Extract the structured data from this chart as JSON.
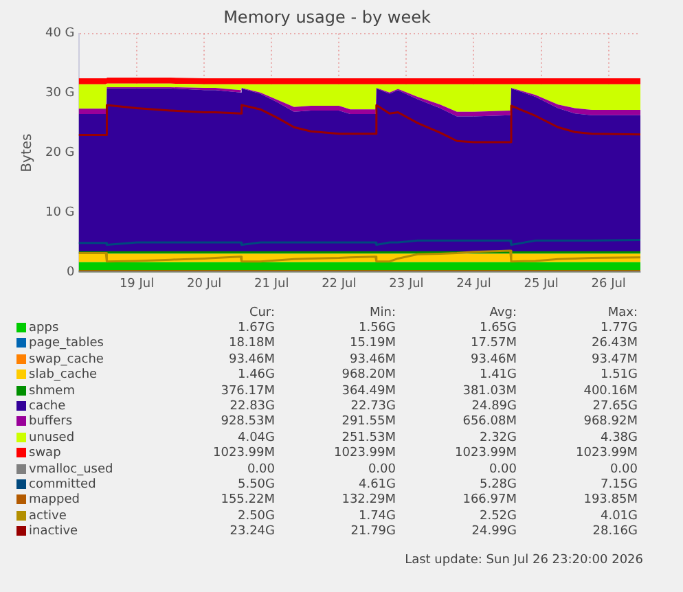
{
  "chart_data": {
    "type": "area",
    "title": "Memory usage - by week",
    "ylabel": "Bytes",
    "stacked": true,
    "legend": "bottom",
    "grid": true,
    "x": [
      "2026-07-18T15:20",
      "2026-07-19T01:00",
      "2026-07-19T01:20",
      "2026-07-19T12:00",
      "2026-07-20T00:00",
      "2026-07-20T12:00",
      "2026-07-20T16:00",
      "2026-07-21T01:00",
      "2026-07-21T01:20",
      "2026-07-21T08:00",
      "2026-07-21T14:00",
      "2026-07-21T20:00",
      "2026-07-22T02:00",
      "2026-07-22T12:00",
      "2026-07-22T16:00",
      "2026-07-23T01:00",
      "2026-07-23T01:20",
      "2026-07-23T06:00",
      "2026-07-23T09:00",
      "2026-07-23T16:00",
      "2026-07-24T00:00",
      "2026-07-24T06:00",
      "2026-07-24T12:00",
      "2026-07-25T01:00",
      "2026-07-25T01:20",
      "2026-07-25T10:00",
      "2026-07-25T18:00",
      "2026-07-26T00:00",
      "2026-07-26T06:00",
      "2026-07-26T23:20"
    ],
    "xlim": [
      "2026-07-18T15:20",
      "2026-07-26T23:20"
    ],
    "xticks": [
      {
        "value": "2026-07-19T12:00",
        "label": "19 Jul"
      },
      {
        "value": "2026-07-20T12:00",
        "label": "20 Jul"
      },
      {
        "value": "2026-07-21T12:00",
        "label": "21 Jul"
      },
      {
        "value": "2026-07-22T12:00",
        "label": "22 Jul"
      },
      {
        "value": "2026-07-23T12:00",
        "label": "23 Jul"
      },
      {
        "value": "2026-07-24T12:00",
        "label": "24 Jul"
      },
      {
        "value": "2026-07-25T12:00",
        "label": "25 Jul"
      },
      {
        "value": "2026-07-26T12:00",
        "label": "26 Jul"
      }
    ],
    "ylim": [
      0,
      40
    ],
    "yticks": [
      0,
      {
        "value": 10,
        "label": "10 G"
      },
      {
        "value": 20,
        "label": "20 G"
      },
      {
        "value": 30,
        "label": "30 G"
      },
      {
        "value": 40,
        "label": "40 G"
      }
    ],
    "series": [
      {
        "name": "apps",
        "type": "area",
        "color": "#00cc00",
        "values": [
          1.7,
          1.7,
          1.7,
          1.7,
          1.7,
          1.7,
          1.7,
          1.7,
          1.7,
          1.7,
          1.7,
          1.7,
          1.7,
          1.7,
          1.7,
          1.7,
          1.7,
          1.7,
          1.7,
          1.7,
          1.7,
          1.7,
          1.7,
          1.7,
          1.7,
          1.7,
          1.7,
          1.7,
          1.7,
          1.7
        ]
      },
      {
        "name": "page_tables",
        "type": "area",
        "color": "#0066b3",
        "values": [
          null,
          null,
          null,
          null,
          null,
          null,
          null,
          null,
          null,
          null,
          null,
          null,
          null,
          null,
          null,
          null,
          null,
          null,
          null,
          null,
          null,
          null,
          null,
          null,
          null,
          null,
          null,
          null,
          null,
          null
        ]
      },
      {
        "name": "swap_cache",
        "type": "area",
        "color": "#ff8000",
        "values": [
          null,
          null,
          null,
          null,
          null,
          null,
          null,
          null,
          null,
          null,
          null,
          null,
          null,
          null,
          null,
          null,
          null,
          null,
          null,
          null,
          null,
          null,
          null,
          null,
          null,
          null,
          null,
          null,
          null,
          null
        ]
      },
      {
        "name": "slab_cache",
        "type": "area",
        "color": "#ffcc00",
        "values": [
          1.4,
          1.4,
          1.4,
          1.4,
          1.4,
          1.4,
          1.4,
          1.4,
          1.4,
          1.4,
          1.4,
          1.4,
          1.4,
          1.4,
          1.4,
          1.4,
          1.4,
          1.4,
          1.4,
          1.4,
          1.4,
          1.4,
          1.4,
          1.4,
          1.4,
          1.4,
          1.4,
          1.4,
          1.4,
          1.4
        ]
      },
      {
        "name": "shmem",
        "type": "area",
        "color": "#008f00",
        "values": [
          0.4,
          0.4,
          0.4,
          0.4,
          0.4,
          0.4,
          0.4,
          0.4,
          0.4,
          0.4,
          0.4,
          0.4,
          0.4,
          0.4,
          0.4,
          0.4,
          0.4,
          0.4,
          0.4,
          0.4,
          0.4,
          0.4,
          0.4,
          0.4,
          0.4,
          0.4,
          0.4,
          0.4,
          0.4,
          0.4
        ]
      },
      {
        "name": "cache",
        "type": "area",
        "color": "#330099",
        "values": [
          23.0,
          23.0,
          27.3,
          27.3,
          27.3,
          27.0,
          27.0,
          26.6,
          27.3,
          26.4,
          25.0,
          23.4,
          23.6,
          23.6,
          23.0,
          23.0,
          27.3,
          26.4,
          27.0,
          25.5,
          24.0,
          22.6,
          22.6,
          22.8,
          27.3,
          25.9,
          24.0,
          23.1,
          22.8,
          22.8
        ]
      },
      {
        "name": "buffers",
        "type": "area",
        "color": "#990099",
        "values": [
          0.9,
          0.9,
          0.2,
          0.2,
          0.2,
          0.4,
          0.4,
          0.4,
          0.1,
          0.2,
          0.4,
          0.8,
          0.8,
          0.8,
          0.8,
          0.8,
          0.1,
          0.2,
          0.2,
          0.4,
          0.6,
          0.8,
          0.8,
          0.8,
          0.1,
          0.3,
          0.6,
          0.9,
          0.9,
          0.9
        ]
      },
      {
        "name": "unused",
        "type": "area",
        "color": "#ccff00",
        "values": [
          4.1,
          4.1,
          0.6,
          0.6,
          0.6,
          0.6,
          0.6,
          1.0,
          0.6,
          1.4,
          2.6,
          3.8,
          3.6,
          3.6,
          4.2,
          4.2,
          0.6,
          1.4,
          0.8,
          2.1,
          3.4,
          4.6,
          4.6,
          4.4,
          0.6,
          1.8,
          3.4,
          4.0,
          4.3,
          4.3
        ]
      },
      {
        "name": "swap",
        "type": "area",
        "color": "#ff0000",
        "values": [
          1.0,
          1.0,
          1.0,
          1.0,
          1.0,
          1.0,
          1.0,
          1.0,
          1.0,
          1.0,
          1.0,
          1.0,
          1.0,
          1.0,
          1.0,
          1.0,
          1.0,
          1.0,
          1.0,
          1.0,
          1.0,
          1.0,
          1.0,
          1.0,
          1.0,
          1.0,
          1.0,
          1.0,
          1.0,
          1.0
        ]
      },
      {
        "name": "vmalloc_used",
        "type": "line",
        "color": "#808080",
        "values": [
          0,
          0,
          0,
          0,
          0,
          0,
          0,
          0,
          0,
          0,
          0,
          0,
          0,
          0,
          0,
          0,
          0,
          0,
          0,
          0,
          0,
          0,
          0,
          0,
          0,
          0,
          0,
          0,
          0,
          0
        ]
      },
      {
        "name": "committed",
        "type": "line",
        "color": "#00487d",
        "values": [
          4.9,
          4.9,
          4.6,
          5.0,
          5.0,
          5.0,
          5.0,
          5.0,
          4.6,
          5.0,
          5.0,
          5.0,
          5.0,
          5.0,
          5.0,
          5.0,
          4.6,
          5.0,
          5.0,
          5.3,
          5.3,
          5.3,
          5.3,
          5.3,
          4.6,
          5.3,
          5.3,
          5.3,
          5.3,
          5.4
        ]
      },
      {
        "name": "mapped",
        "type": "line",
        "color": "#b35a00",
        "values": [
          0.2,
          0.2,
          0.2,
          0.2,
          0.2,
          0.2,
          0.2,
          0.2,
          0.2,
          0.2,
          0.2,
          0.2,
          0.2,
          0.2,
          0.2,
          0.2,
          0.2,
          0.2,
          0.2,
          0.2,
          0.2,
          0.2,
          0.2,
          0.2,
          0.2,
          0.2,
          0.2,
          0.2,
          0.2,
          0.2
        ]
      },
      {
        "name": "active",
        "type": "line",
        "color": "#b38f00",
        "values": [
          3.2,
          3.2,
          1.8,
          1.9,
          2.1,
          2.3,
          2.4,
          2.6,
          1.8,
          1.8,
          2.0,
          2.2,
          2.3,
          2.4,
          2.5,
          2.6,
          1.8,
          1.8,
          2.3,
          3.0,
          3.1,
          3.2,
          3.4,
          3.6,
          1.8,
          1.9,
          2.2,
          2.3,
          2.4,
          2.5
        ]
      },
      {
        "name": "inactive",
        "type": "line",
        "color": "#990000",
        "values": [
          23.0,
          23.0,
          28.0,
          27.5,
          27.1,
          26.8,
          26.8,
          26.6,
          28.0,
          27.3,
          25.9,
          24.3,
          23.6,
          23.2,
          23.2,
          23.2,
          28.0,
          26.6,
          26.8,
          25.0,
          23.4,
          22.0,
          21.8,
          21.8,
          27.9,
          26.2,
          24.3,
          23.5,
          23.2,
          23.1
        ]
      }
    ],
    "annotations": [
      "Cur:",
      "Min:",
      "Avg:",
      "Max:",
      "1.67G",
      "1.56G",
      "1.65G",
      "1.77G",
      "18.18M",
      "15.19M",
      "17.57M",
      "26.43M",
      "93.46M",
      "93.46M",
      "93.46M",
      "93.47M",
      "1.46G",
      "968.20M",
      "1.41G",
      "1.51G",
      "376.17M",
      "364.49M",
      "381.03M",
      "400.16M",
      "22.83G",
      "22.73G",
      "24.89G",
      "27.65G",
      "928.53M",
      "291.55M",
      "656.08M",
      "968.92M",
      "4.04G",
      "251.53M",
      "2.32G",
      "4.38G",
      "1023.99M",
      "1023.99M",
      "1023.99M",
      "1023.99M",
      "0.00",
      "0.00",
      "0.00",
      "0.00",
      "5.50G",
      "4.61G",
      "5.28G",
      "7.15G",
      "155.22M",
      "132.29M",
      "166.97M",
      "193.85M",
      "2.50G",
      "1.74G",
      "2.52G",
      "4.01G",
      "23.24G",
      "21.79G",
      "24.99G",
      "28.16G",
      "Last update: Sun Jul 26 23:20:00 2026"
    ]
  }
}
